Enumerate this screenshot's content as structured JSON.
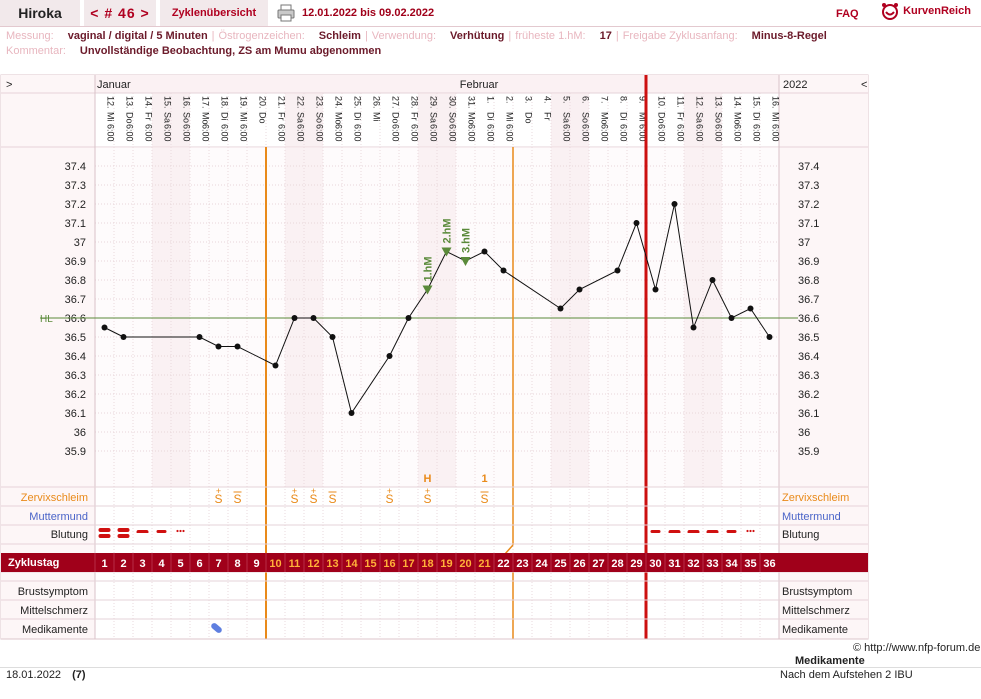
{
  "header": {
    "user": "Hiroka",
    "cycle_nav": "< # 46 >",
    "overview": "Zyklenübersicht",
    "date_range": "12.01.2022 bis 09.02.2022",
    "faq": "FAQ",
    "logo": "KurvenReich"
  },
  "info": {
    "line1": [
      {
        "label": "Messung:",
        "value": "vaginal / digital / 5 Minuten"
      },
      {
        "label": "Östrogenzeichen:",
        "value": "Schleim"
      },
      {
        "label": "Verwendung:",
        "value": "Verhütung"
      },
      {
        "label": "früheste 1.hM:",
        "value": "17"
      },
      {
        "label": "Freigabe Zyklusanfang:",
        "value": "Minus-8-Regel"
      }
    ],
    "line2": [
      {
        "label": "Kommentar:",
        "value": "Unvollständige Beobachtung, ZS am Mumu abgenommen"
      }
    ]
  },
  "chart_data": {
    "type": "line",
    "title": "",
    "month_left": "Januar",
    "month_mid": "Februar",
    "year": "2022",
    "nav_left": ">",
    "nav_right": "<",
    "ylim": [
      35.8,
      37.5
    ],
    "yticks": [
      "37.4",
      "37.3",
      "37.2",
      "37.1",
      "37",
      "36.9",
      "36.8",
      "36.7",
      "36.6",
      "36.5",
      "36.4",
      "36.3",
      "36.2",
      "36.1",
      "36",
      "35.9"
    ],
    "hl_label": "HL",
    "hl_value": 36.6,
    "days": [
      {
        "date": "12.",
        "wd": "Mi",
        "time": "6:00",
        "we": false
      },
      {
        "date": "13.",
        "wd": "Do",
        "time": "6:00",
        "we": false
      },
      {
        "date": "14.",
        "wd": "Fr",
        "time": "6:00",
        "we": false
      },
      {
        "date": "15.",
        "wd": "Sa",
        "time": "6:00",
        "we": true
      },
      {
        "date": "16.",
        "wd": "So",
        "time": "6:00",
        "we": true
      },
      {
        "date": "17.",
        "wd": "Mo",
        "time": "6:00",
        "we": false
      },
      {
        "date": "18.",
        "wd": "Di",
        "time": "6:00",
        "we": false
      },
      {
        "date": "19.",
        "wd": "Mi",
        "time": "6:00",
        "we": false
      },
      {
        "date": "20.",
        "wd": "Do",
        "time": "",
        "we": false
      },
      {
        "date": "21.",
        "wd": "Fr",
        "time": "6:00",
        "we": false
      },
      {
        "date": "22.",
        "wd": "Sa",
        "time": "6:00",
        "we": true
      },
      {
        "date": "23.",
        "wd": "So",
        "time": "6:00",
        "we": true
      },
      {
        "date": "24.",
        "wd": "Mo",
        "time": "6:00",
        "we": false
      },
      {
        "date": "25.",
        "wd": "Di",
        "time": "6:00",
        "we": false
      },
      {
        "date": "26.",
        "wd": "Mi",
        "time": "",
        "we": false
      },
      {
        "date": "27.",
        "wd": "Do",
        "time": "6:00",
        "we": false
      },
      {
        "date": "28.",
        "wd": "Fr",
        "time": "6:00",
        "we": false
      },
      {
        "date": "29.",
        "wd": "Sa",
        "time": "6:00",
        "we": true
      },
      {
        "date": "30.",
        "wd": "So",
        "time": "6:00",
        "we": true
      },
      {
        "date": "31.",
        "wd": "Mo",
        "time": "6:00",
        "we": false
      },
      {
        "date": "1.",
        "wd": "Di",
        "time": "6:00",
        "we": false
      },
      {
        "date": "2.",
        "wd": "Mi",
        "time": "6:00",
        "we": false
      },
      {
        "date": "3.",
        "wd": "Do",
        "time": "",
        "we": false
      },
      {
        "date": "4.",
        "wd": "Fr",
        "time": "",
        "we": false
      },
      {
        "date": "5.",
        "wd": "Sa",
        "time": "6:00",
        "we": true
      },
      {
        "date": "6.",
        "wd": "So",
        "time": "6:00",
        "we": true
      },
      {
        "date": "7.",
        "wd": "Mo",
        "time": "6:00",
        "we": false
      },
      {
        "date": "8.",
        "wd": "Di",
        "time": "6:00",
        "we": false
      },
      {
        "date": "9.",
        "wd": "Mi",
        "time": "6:00",
        "we": false
      },
      {
        "date": "10.",
        "wd": "Do",
        "time": "6:00",
        "we": false
      },
      {
        "date": "11.",
        "wd": "Fr",
        "time": "6:00",
        "we": false
      },
      {
        "date": "12.",
        "wd": "Sa",
        "time": "6:00",
        "we": true
      },
      {
        "date": "13.",
        "wd": "So",
        "time": "6:00",
        "we": true
      },
      {
        "date": "14.",
        "wd": "Mo",
        "time": "6:00",
        "we": false
      },
      {
        "date": "15.",
        "wd": "Di",
        "time": "6:00",
        "we": false
      },
      {
        "date": "16.",
        "wd": "Mi",
        "time": "6:00",
        "we": false
      }
    ],
    "temps": [
      36.55,
      36.5,
      null,
      null,
      null,
      36.5,
      36.45,
      36.45,
      null,
      36.35,
      36.6,
      36.6,
      36.5,
      36.1,
      null,
      36.4,
      36.6,
      36.75,
      36.95,
      36.9,
      36.95,
      36.85,
      null,
      null,
      36.65,
      36.75,
      null,
      36.85,
      37.1,
      36.75,
      37.2,
      36.55,
      36.8,
      36.6,
      36.65,
      36.5
    ],
    "markers": [
      {
        "day": 18,
        "label": "1.hM"
      },
      {
        "day": 19,
        "label": "2.hM"
      },
      {
        "day": 20,
        "label": "3.hM"
      }
    ],
    "cervix_top": [
      {
        "day": 18,
        "label": "H"
      },
      {
        "day": 21,
        "label": "1"
      }
    ],
    "cervix": [
      {
        "day": 7,
        "label": "S",
        "style": "plus"
      },
      {
        "day": 8,
        "label": "S",
        "style": "plain"
      },
      {
        "day": 11,
        "label": "S",
        "style": "plus"
      },
      {
        "day": 12,
        "label": "S",
        "style": "plus"
      },
      {
        "day": 13,
        "label": "S",
        "style": "plain"
      },
      {
        "day": 16,
        "label": "S",
        "style": "plus"
      },
      {
        "day": 18,
        "label": "S",
        "style": "plus"
      },
      {
        "day": 21,
        "label": "S",
        "style": "plain"
      }
    ],
    "bleeding": [
      {
        "day": 1,
        "level": "heavy"
      },
      {
        "day": 2,
        "level": "heavy"
      },
      {
        "day": 3,
        "level": "medium"
      },
      {
        "day": 4,
        "level": "light"
      },
      {
        "day": 5,
        "level": "spot"
      },
      {
        "day": 30,
        "level": "light"
      },
      {
        "day": 31,
        "level": "medium"
      },
      {
        "day": 32,
        "level": "medium"
      },
      {
        "day": 33,
        "level": "medium"
      },
      {
        "day": 34,
        "level": "light"
      },
      {
        "day": 35,
        "level": "spot"
      }
    ],
    "cycle_days": [
      "1",
      "2",
      "3",
      "4",
      "5",
      "6",
      "7",
      "8",
      "9",
      "10",
      "11",
      "12",
      "13",
      "14",
      "15",
      "16",
      "17",
      "18",
      "19",
      "20",
      "21",
      "22",
      "23",
      "24",
      "25",
      "26",
      "27",
      "28",
      "29",
      "30",
      "31",
      "32",
      "33",
      "34",
      "35",
      "36"
    ],
    "highlight_days_from": 10,
    "highlight_days_to": 21,
    "medication_day": 7,
    "rows_left": [
      "Zervixschleim",
      "Muttermund",
      "Blutung",
      "Zyklustag",
      "Brustsymptom",
      "Mittelschmerz",
      "Medikamente"
    ],
    "rows_right": [
      "Zervixschleim",
      "Muttermund",
      "Blutung",
      "Brustsymptom",
      "Mittelschmerz",
      "Medikamente"
    ]
  },
  "footer": {
    "copyright": "© http://www.nfp-forum.de",
    "med_heading": "Medikamente",
    "date": "18.01.2022",
    "count": "(7)",
    "note": "Nach dem Aufstehen 2 IBU"
  },
  "colors": {
    "accent": "#a0001a",
    "orange": "#e98a1a",
    "green": "#5a8a3a",
    "blue": "#4a64c8",
    "weekend": "#f3e1e5"
  }
}
